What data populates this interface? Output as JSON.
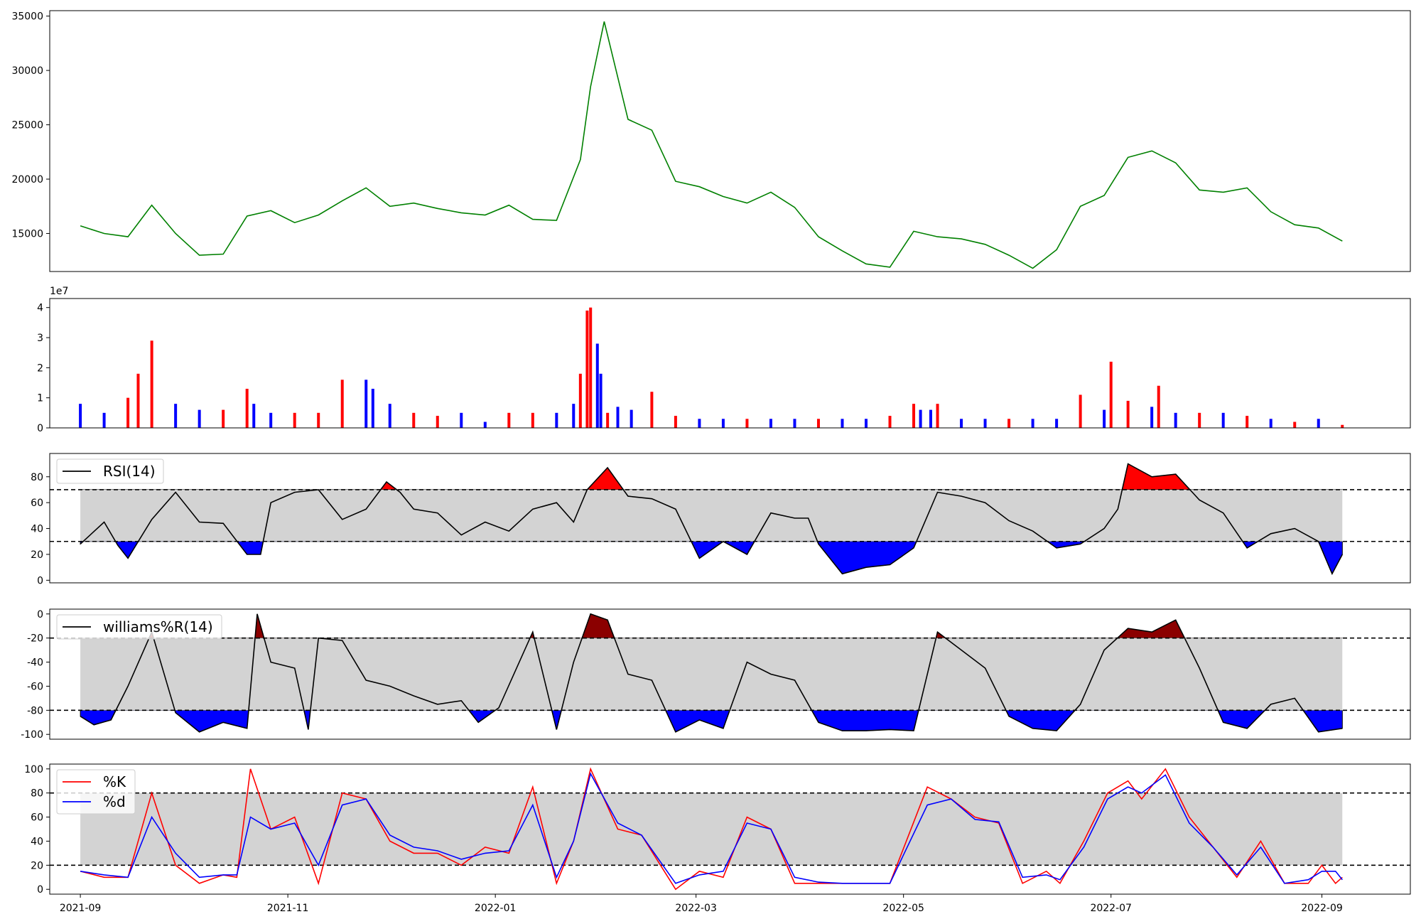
{
  "chart_data": [
    {
      "type": "line",
      "panel": "price",
      "color": "#008000",
      "ylim": [
        11500,
        35500
      ],
      "yticks": [
        15000,
        20000,
        25000,
        30000,
        35000
      ],
      "x": [
        "2021-09-01",
        "2021-09-08",
        "2021-09-15",
        "2021-09-22",
        "2021-09-29",
        "2021-10-06",
        "2021-10-13",
        "2021-10-20",
        "2021-10-27",
        "2021-11-03",
        "2021-11-10",
        "2021-11-17",
        "2021-11-24",
        "2021-12-01",
        "2021-12-08",
        "2021-12-15",
        "2021-12-22",
        "2021-12-29",
        "2022-01-05",
        "2022-01-12",
        "2022-01-19",
        "2022-01-26",
        "2022-01-29",
        "2022-02-02",
        "2022-02-09",
        "2022-02-16",
        "2022-02-23",
        "2022-03-02",
        "2022-03-09",
        "2022-03-16",
        "2022-03-23",
        "2022-03-30",
        "2022-04-06",
        "2022-04-13",
        "2022-04-20",
        "2022-04-27",
        "2022-05-04",
        "2022-05-11",
        "2022-05-18",
        "2022-05-25",
        "2022-06-01",
        "2022-06-08",
        "2022-06-15",
        "2022-06-22",
        "2022-06-29",
        "2022-07-06",
        "2022-07-13",
        "2022-07-20",
        "2022-07-27",
        "2022-08-03",
        "2022-08-10",
        "2022-08-17",
        "2022-08-24",
        "2022-08-31",
        "2022-09-07"
      ],
      "values": [
        15700,
        15000,
        14700,
        17600,
        15000,
        13000,
        13100,
        16600,
        17100,
        16000,
        16700,
        18000,
        19200,
        17500,
        17800,
        17300,
        16900,
        16700,
        17600,
        16300,
        16200,
        21800,
        28500,
        34500,
        25500,
        24500,
        19800,
        19300,
        18400,
        17800,
        18800,
        17400,
        14700,
        13400,
        12200,
        11900,
        15200,
        14700,
        14500,
        14000,
        13000,
        11800,
        13500,
        17500,
        18500,
        22000,
        22600,
        21500,
        19000,
        18800,
        19200,
        17000,
        15800,
        15500,
        14300
      ]
    },
    {
      "type": "bar",
      "panel": "volume",
      "scale_label": "1e7",
      "ylim": [
        0,
        4.3
      ],
      "yticks": [
        0,
        1,
        2,
        3,
        4
      ],
      "up_color": "#ff0000",
      "down_color": "#0000ff",
      "x": [
        "2021-09-01",
        "2021-09-08",
        "2021-09-15",
        "2021-09-18",
        "2021-09-22",
        "2021-09-29",
        "2021-10-06",
        "2021-10-13",
        "2021-10-20",
        "2021-10-22",
        "2021-10-27",
        "2021-11-03",
        "2021-11-10",
        "2021-11-17",
        "2021-11-24",
        "2021-11-26",
        "2021-12-01",
        "2021-12-08",
        "2021-12-15",
        "2021-12-22",
        "2021-12-29",
        "2022-01-05",
        "2022-01-12",
        "2022-01-19",
        "2022-01-24",
        "2022-01-26",
        "2022-01-28",
        "2022-01-29",
        "2022-01-31",
        "2022-02-01",
        "2022-02-03",
        "2022-02-06",
        "2022-02-10",
        "2022-02-16",
        "2022-02-23",
        "2022-03-02",
        "2022-03-09",
        "2022-03-16",
        "2022-03-23",
        "2022-03-30",
        "2022-04-06",
        "2022-04-13",
        "2022-04-20",
        "2022-04-27",
        "2022-05-04",
        "2022-05-06",
        "2022-05-09",
        "2022-05-11",
        "2022-05-18",
        "2022-05-25",
        "2022-06-01",
        "2022-06-08",
        "2022-06-15",
        "2022-06-22",
        "2022-06-29",
        "2022-07-01",
        "2022-07-06",
        "2022-07-13",
        "2022-07-15",
        "2022-07-20",
        "2022-07-27",
        "2022-08-03",
        "2022-08-10",
        "2022-08-17",
        "2022-08-24",
        "2022-08-31",
        "2022-09-07"
      ],
      "values": [
        0.8,
        0.5,
        1.0,
        1.8,
        2.9,
        0.8,
        0.6,
        0.6,
        1.3,
        0.8,
        0.5,
        0.5,
        0.5,
        1.6,
        1.6,
        1.3,
        0.8,
        0.5,
        0.4,
        0.5,
        0.2,
        0.5,
        0.5,
        0.5,
        0.8,
        1.8,
        3.9,
        4.0,
        2.8,
        1.8,
        0.5,
        0.7,
        0.6,
        1.2,
        0.4,
        0.3,
        0.3,
        0.3,
        0.3,
        0.3,
        0.3,
        0.3,
        0.3,
        0.4,
        0.8,
        0.6,
        0.6,
        0.8,
        0.3,
        0.3,
        0.3,
        0.3,
        0.3,
        1.1,
        0.6,
        2.2,
        0.9,
        0.7,
        1.4,
        0.5,
        0.5,
        0.5,
        0.4,
        0.3,
        0.2,
        0.3,
        0.1
      ],
      "up": [
        false,
        false,
        true,
        true,
        true,
        false,
        false,
        true,
        true,
        false,
        false,
        true,
        true,
        true,
        false,
        false,
        false,
        true,
        true,
        false,
        false,
        true,
        true,
        false,
        false,
        true,
        true,
        true,
        false,
        false,
        true,
        false,
        false,
        true,
        true,
        false,
        false,
        true,
        false,
        false,
        true,
        false,
        false,
        true,
        true,
        false,
        false,
        true,
        false,
        false,
        true,
        false,
        false,
        true,
        false,
        true,
        true,
        false,
        true,
        false,
        true,
        false,
        true,
        false,
        true,
        false,
        true
      ]
    },
    {
      "type": "area",
      "panel": "rsi",
      "legend": "RSI(14)",
      "ylim": [
        -2,
        98
      ],
      "yticks": [
        0,
        20,
        40,
        60,
        80
      ],
      "upper": 70,
      "lower": 30,
      "line_color": "#000000",
      "band_color": "#d3d3d3",
      "above_color": "#ff0000",
      "below_color": "#0000ff",
      "x": [
        "2021-09-01",
        "2021-09-08",
        "2021-09-12",
        "2021-09-15",
        "2021-09-22",
        "2021-09-29",
        "2021-10-06",
        "2021-10-13",
        "2021-10-20",
        "2021-10-24",
        "2021-10-27",
        "2021-11-03",
        "2021-11-10",
        "2021-11-17",
        "2021-11-24",
        "2021-11-30",
        "2021-12-04",
        "2021-12-08",
        "2021-12-15",
        "2021-12-22",
        "2021-12-29",
        "2022-01-05",
        "2022-01-12",
        "2022-01-19",
        "2022-01-24",
        "2022-01-28",
        "2022-02-03",
        "2022-02-09",
        "2022-02-16",
        "2022-02-23",
        "2022-03-02",
        "2022-03-09",
        "2022-03-16",
        "2022-03-23",
        "2022-03-30",
        "2022-04-03",
        "2022-04-06",
        "2022-04-13",
        "2022-04-20",
        "2022-04-27",
        "2022-05-04",
        "2022-05-11",
        "2022-05-18",
        "2022-05-25",
        "2022-06-01",
        "2022-06-08",
        "2022-06-15",
        "2022-06-22",
        "2022-06-29",
        "2022-07-03",
        "2022-07-06",
        "2022-07-13",
        "2022-07-20",
        "2022-07-27",
        "2022-08-03",
        "2022-08-10",
        "2022-08-17",
        "2022-08-24",
        "2022-08-31",
        "2022-09-04",
        "2022-09-07"
      ],
      "values": [
        28,
        45,
        27,
        17,
        47,
        68,
        45,
        44,
        20,
        20,
        60,
        68,
        70,
        47,
        55,
        76,
        68,
        55,
        52,
        35,
        45,
        38,
        55,
        60,
        45,
        70,
        87,
        65,
        63,
        55,
        17,
        30,
        20,
        52,
        48,
        48,
        28,
        5,
        10,
        12,
        25,
        68,
        65,
        60,
        46,
        38,
        25,
        28,
        40,
        55,
        90,
        80,
        82,
        62,
        52,
        25,
        36,
        40,
        30,
        5,
        20
      ]
    },
    {
      "type": "area",
      "panel": "williams",
      "legend": "williams%R(14)",
      "ylim": [
        -104,
        4
      ],
      "yticks": [
        0,
        -20,
        -40,
        -60,
        -80,
        -100
      ],
      "upper": -20,
      "lower": -80,
      "line_color": "#000000",
      "band_color": "#d3d3d3",
      "above_color": "#8b0000",
      "below_color": "#0000ff",
      "x": [
        "2021-09-01",
        "2021-09-05",
        "2021-09-10",
        "2021-09-15",
        "2021-09-22",
        "2021-09-29",
        "2021-10-06",
        "2021-10-13",
        "2021-10-20",
        "2021-10-23",
        "2021-10-27",
        "2021-11-03",
        "2021-11-07",
        "2021-11-10",
        "2021-11-17",
        "2021-11-24",
        "2021-12-01",
        "2021-12-08",
        "2021-12-15",
        "2021-12-22",
        "2021-12-27",
        "2022-01-02",
        "2022-01-12",
        "2022-01-19",
        "2022-01-24",
        "2022-01-29",
        "2022-02-03",
        "2022-02-09",
        "2022-02-16",
        "2022-02-23",
        "2022-03-02",
        "2022-03-09",
        "2022-03-16",
        "2022-03-23",
        "2022-03-30",
        "2022-04-06",
        "2022-04-13",
        "2022-04-20",
        "2022-04-27",
        "2022-05-04",
        "2022-05-11",
        "2022-05-18",
        "2022-05-25",
        "2022-06-01",
        "2022-06-08",
        "2022-06-15",
        "2022-06-22",
        "2022-06-29",
        "2022-07-06",
        "2022-07-13",
        "2022-07-20",
        "2022-07-27",
        "2022-08-03",
        "2022-08-10",
        "2022-08-17",
        "2022-08-24",
        "2022-08-31",
        "2022-09-07"
      ],
      "values": [
        -85,
        -92,
        -88,
        -60,
        -15,
        -82,
        -98,
        -90,
        -95,
        0,
        -40,
        -45,
        -96,
        -20,
        -22,
        -55,
        -60,
        -68,
        -75,
        -72,
        -90,
        -78,
        -15,
        -96,
        -40,
        0,
        -5,
        -50,
        -55,
        -98,
        -88,
        -95,
        -40,
        -50,
        -55,
        -90,
        -97,
        -97,
        -96,
        -97,
        -15,
        -30,
        -45,
        -85,
        -95,
        -97,
        -75,
        -30,
        -12,
        -15,
        -5,
        -45,
        -90,
        -95,
        -75,
        -70,
        -98,
        -95
      ]
    },
    {
      "type": "line",
      "panel": "stochastic",
      "ylim": [
        -4,
        104
      ],
      "yticks": [
        0,
        20,
        40,
        60,
        80,
        100
      ],
      "upper": 80,
      "lower": 20,
      "band_color": "#d3d3d3",
      "series": [
        {
          "name": "%K",
          "color": "#ff0000",
          "values": [
            15,
            10,
            10,
            80,
            20,
            5,
            12,
            10,
            100,
            50,
            60,
            5,
            80,
            75,
            40,
            30,
            30,
            20,
            35,
            30,
            85,
            5,
            40,
            100,
            50,
            45,
            0,
            15,
            10,
            60,
            50,
            5,
            5,
            5,
            5,
            5,
            85,
            75,
            60,
            55,
            5,
            15,
            5,
            40,
            80,
            90,
            75,
            100,
            60,
            35,
            10,
            40,
            5,
            5,
            20,
            5,
            10
          ]
        },
        {
          "name": "%d",
          "color": "#0000ff",
          "values": [
            15,
            12,
            10,
            60,
            30,
            10,
            12,
            12,
            60,
            50,
            55,
            20,
            70,
            75,
            45,
            35,
            32,
            25,
            30,
            32,
            70,
            10,
            40,
            96,
            55,
            45,
            5,
            12,
            15,
            55,
            50,
            10,
            6,
            5,
            5,
            5,
            70,
            75,
            58,
            56,
            10,
            12,
            8,
            35,
            75,
            85,
            80,
            95,
            55,
            35,
            12,
            35,
            5,
            8,
            15,
            15,
            8
          ]
        }
      ],
      "x": [
        "2021-09-01",
        "2021-09-08",
        "2021-09-15",
        "2021-09-22",
        "2021-09-29",
        "2021-10-06",
        "2021-10-13",
        "2021-10-17",
        "2021-10-21",
        "2021-10-27",
        "2021-11-03",
        "2021-11-10",
        "2021-11-17",
        "2021-11-24",
        "2021-12-01",
        "2021-12-08",
        "2021-12-15",
        "2021-12-22",
        "2021-12-29",
        "2022-01-05",
        "2022-01-12",
        "2022-01-19",
        "2022-01-24",
        "2022-01-29",
        "2022-02-06",
        "2022-02-13",
        "2022-02-23",
        "2022-03-02",
        "2022-03-09",
        "2022-03-16",
        "2022-03-23",
        "2022-03-30",
        "2022-04-06",
        "2022-04-13",
        "2022-04-20",
        "2022-04-27",
        "2022-05-08",
        "2022-05-15",
        "2022-05-22",
        "2022-05-29",
        "2022-06-05",
        "2022-06-12",
        "2022-06-16",
        "2022-06-23",
        "2022-06-30",
        "2022-07-06",
        "2022-07-10",
        "2022-07-17",
        "2022-07-24",
        "2022-07-31",
        "2022-08-07",
        "2022-08-14",
        "2022-08-21",
        "2022-08-28",
        "2022-09-01",
        "2022-09-05",
        "2022-09-07"
      ]
    }
  ],
  "x_axis": {
    "tick_labels": [
      "2021-09",
      "2021-11",
      "2022-01",
      "2022-03",
      "2022-05",
      "2022-07",
      "2022-09"
    ],
    "range": [
      "2021-08-23",
      "2022-09-27"
    ]
  }
}
